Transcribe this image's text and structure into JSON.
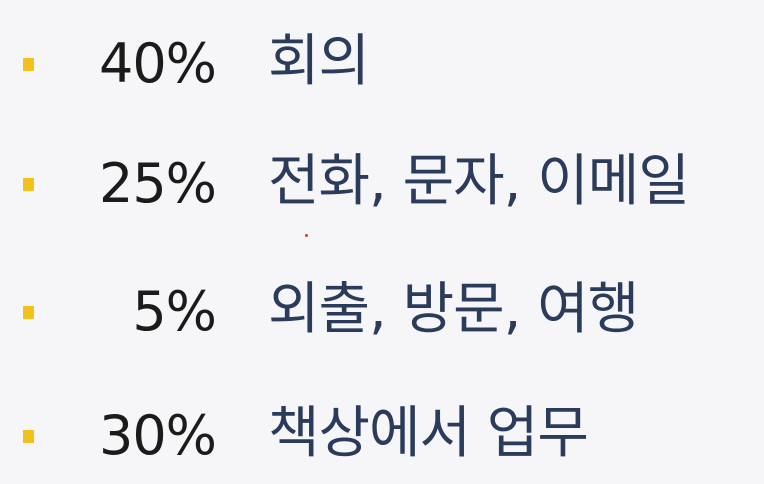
{
  "rows": [
    {
      "percent": "40%",
      "label": "회의"
    },
    {
      "percent": "25%",
      "label": "전화, 문자, 이메일"
    },
    {
      "percent": "5%",
      "label": "외출, 방문, 여행"
    },
    {
      "percent": "30%",
      "label": "책상에서 업무"
    }
  ],
  "colors": {
    "bullet": "#f2c21b",
    "percent_text": "#1b1b1b",
    "label_text": "#2a3b5c",
    "background": "#f6f6f8"
  }
}
